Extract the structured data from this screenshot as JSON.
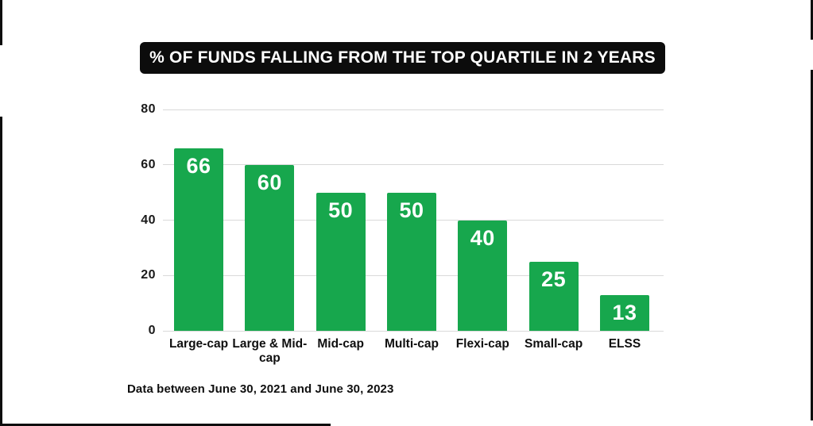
{
  "title_banner": "% OF FUNDS FALLING FROM THE TOP QUARTILE IN 2 YEARS",
  "footnote": "Data between June 30, 2021 and June 30, 2023",
  "colors": {
    "bar": "#17a74d",
    "banner_bg": "#0c0c0c",
    "banner_text": "#ffffff",
    "gridline": "#d9d9d9",
    "text": "#0f0f0f"
  },
  "chart_data": {
    "type": "bar",
    "title": "% OF FUNDS FALLING FROM THE TOP QUARTILE IN 2 YEARS",
    "categories": [
      "Large-cap",
      "Large & Mid-cap",
      "Mid-cap",
      "Multi-cap",
      "Flexi-cap",
      "Small-cap",
      "ELSS"
    ],
    "values": [
      66,
      60,
      50,
      50,
      40,
      25,
      13
    ],
    "bar_labels": [
      "66",
      "60",
      "50",
      "50",
      "40",
      "25",
      "13"
    ],
    "xlabel": "",
    "ylabel": "",
    "ylim": [
      0,
      80
    ],
    "y_ticks": [
      0,
      20,
      40,
      60,
      80
    ],
    "grid": true,
    "legend": false,
    "annotation": "Data between June 30, 2021 and June 30, 2023"
  }
}
